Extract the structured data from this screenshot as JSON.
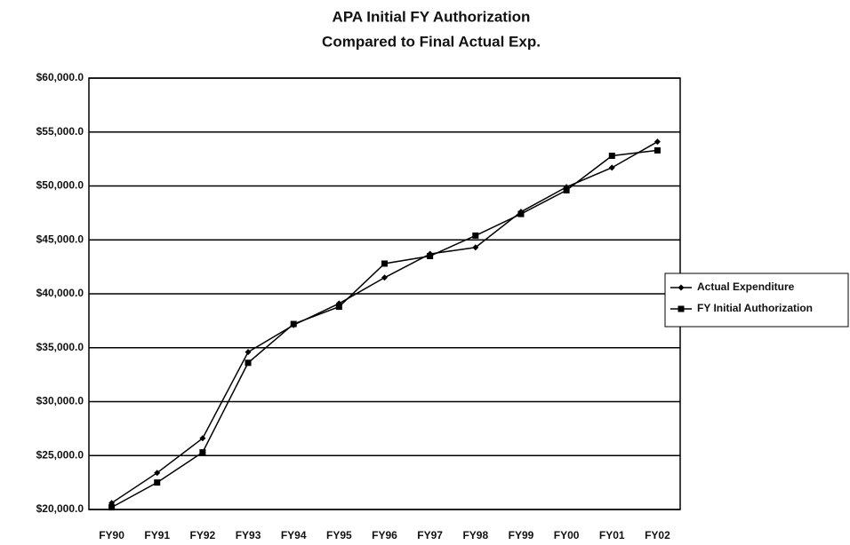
{
  "chart_data": {
    "type": "line",
    "title": [
      "APA Initial FY Authorization",
      "Compared to Final Actual Exp."
    ],
    "categories": [
      "FY90",
      "FY91",
      "FY92",
      "FY93",
      "FY94",
      "FY95",
      "FY96",
      "FY97",
      "FY98",
      "FY99",
      "FY00",
      "FY01",
      "FY02"
    ],
    "series": [
      {
        "name": "Actual Expenditure",
        "color": "#000000",
        "marker": "diamond",
        "values": [
          20600,
          23400,
          26600,
          34600,
          37100,
          39100,
          41500,
          43700,
          44300,
          47600,
          49900,
          51700,
          54100
        ]
      },
      {
        "name": "FY Initial Authorization",
        "color": "#000000",
        "marker": "square",
        "values": [
          20200,
          22500,
          25300,
          33600,
          37200,
          38800,
          42800,
          43500,
          45400,
          47400,
          49600,
          52800,
          53300
        ]
      }
    ],
    "ylim": [
      20000,
      60000
    ],
    "yticks": [
      {
        "value": 20000,
        "label": "$20,000.0"
      },
      {
        "value": 25000,
        "label": "$25,000.0"
      },
      {
        "value": 30000,
        "label": "$30,000.0"
      },
      {
        "value": 35000,
        "label": "$35,000.0"
      },
      {
        "value": 40000,
        "label": "$40,000.0"
      },
      {
        "value": 45000,
        "label": "$45,000.0"
      },
      {
        "value": 50000,
        "label": "$50,000.0"
      },
      {
        "value": 55000,
        "label": "$55,000.0"
      },
      {
        "value": 60000,
        "label": "$60,000.0"
      }
    ],
    "grid": true,
    "legend": "right"
  }
}
